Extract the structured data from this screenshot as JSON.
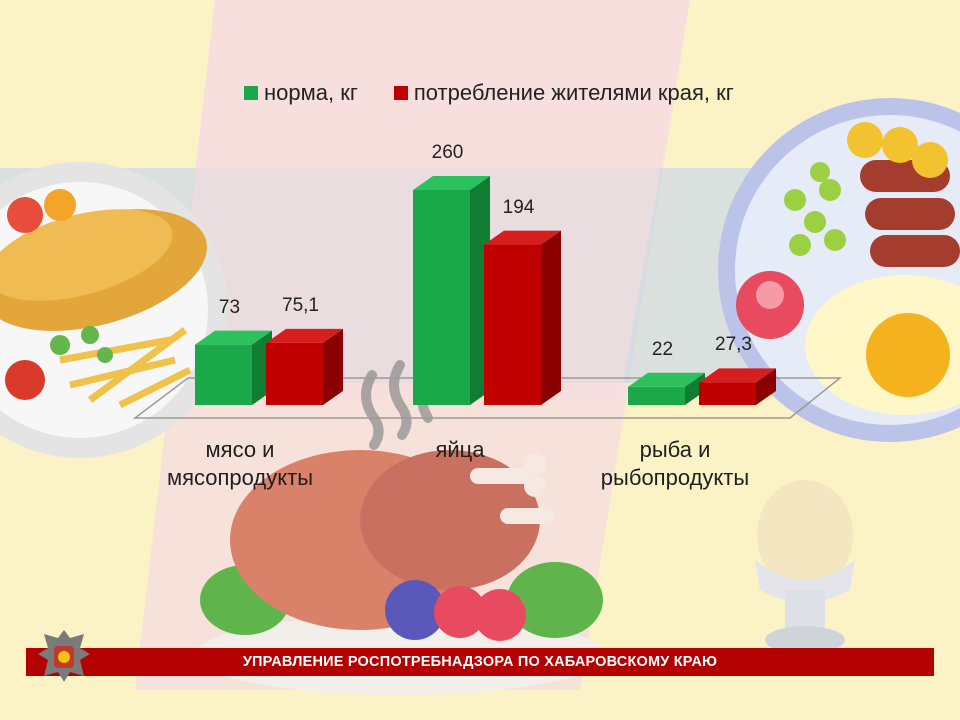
{
  "colors": {
    "norm": "#1aa84a",
    "consumption": "#c00000",
    "banner": "#b40000"
  },
  "chart_data": {
    "type": "bar",
    "categories": [
      "мясо и\nмясопродукты",
      "яйца",
      "рыба и\nрыбопродукты"
    ],
    "series": [
      {
        "name": "норма, кг",
        "values": [
          73,
          260,
          22
        ],
        "labels": [
          "73",
          "260",
          "22"
        ]
      },
      {
        "name": "потребление жителями края, кг",
        "values": [
          75.1,
          194,
          27.3
        ],
        "labels": [
          "75,1",
          "194",
          "27,3"
        ]
      }
    ],
    "legend_position": "top",
    "grid": false,
    "style": "3d"
  },
  "footer": {
    "text": "УПРАВЛЕНИЕ РОСПОТРЕБНАДЗОРА ПО ХАБАРОВСКОМУ КРАЮ"
  }
}
